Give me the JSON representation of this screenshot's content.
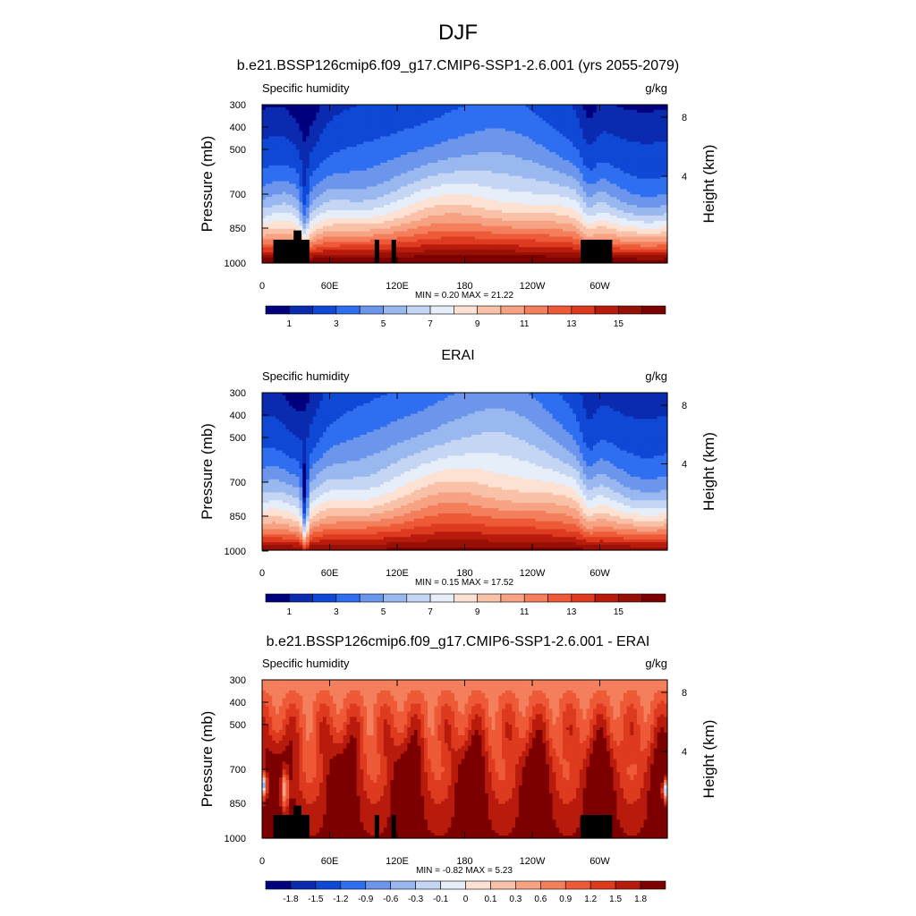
{
  "figure": {
    "main_title": "DJF",
    "panel_variable_label": "Specific humidity",
    "panel_units_label": "g/kg",
    "pressure_axis_label": "Pressure (mb)",
    "height_axis_label": "Height (km)"
  },
  "chart_data": [
    {
      "type": "heatmap",
      "title": "b.e21.BSSP126cmip6.f09_g17.CMIP6-SSP1-2.6.001 (yrs 2055-2079)",
      "variable": "Specific humidity",
      "units": "g/kg",
      "x_ticks": [
        "0",
        "60E",
        "120E",
        "180",
        "120W",
        "60W"
      ],
      "y_ticks": [
        "300",
        "400",
        "500",
        "700",
        "850",
        "1000"
      ],
      "right_ticks": [
        "8",
        "4"
      ],
      "xlabel": "",
      "ylabel": "Pressure (mb)",
      "right_label": "Height (km)",
      "x_range_deg_east": [
        0,
        360
      ],
      "pressure_range_mb": [
        1000,
        300
      ],
      "stats_text": "MIN =   0.20  MAX =  21.22",
      "min": 0.2,
      "max": 21.22,
      "colorbar_labels": [
        "1",
        "3",
        "5",
        "7",
        "9",
        "11",
        "13",
        "15"
      ],
      "colorbar_levels": [
        0.5,
        1,
        2,
        3,
        4,
        5,
        6,
        7,
        8,
        9,
        10,
        11,
        12,
        13,
        14,
        15
      ],
      "colorbar_colors": [
        "#00007f",
        "#0a2bb0",
        "#0f48d4",
        "#2f6ef0",
        "#6c96ec",
        "#9ab8f0",
        "#c5d6f4",
        "#e6eef9",
        "#fde2d4",
        "#f9c2a8",
        "#f6a283",
        "#f47f5c",
        "#ee5a37",
        "#de3a1f",
        "#b81b0c",
        "#961006",
        "#7c0000"
      ],
      "topography": true
    },
    {
      "type": "heatmap",
      "title": "ERAI",
      "variable": "Specific humidity",
      "units": "g/kg",
      "x_ticks": [
        "0",
        "60E",
        "120E",
        "180",
        "120W",
        "60W"
      ],
      "y_ticks": [
        "300",
        "400",
        "500",
        "700",
        "850",
        "1000"
      ],
      "right_ticks": [
        "8",
        "4"
      ],
      "xlabel": "",
      "ylabel": "Pressure (mb)",
      "right_label": "Height (km)",
      "x_range_deg_east": [
        0,
        360
      ],
      "pressure_range_mb": [
        1000,
        300
      ],
      "stats_text": "MIN =   0.15  MAX =  17.52",
      "min": 0.15,
      "max": 17.52,
      "colorbar_labels": [
        "1",
        "3",
        "5",
        "7",
        "9",
        "11",
        "13",
        "15"
      ],
      "colorbar_levels": [
        0.5,
        1,
        2,
        3,
        4,
        5,
        6,
        7,
        8,
        9,
        10,
        11,
        12,
        13,
        14,
        15
      ],
      "colorbar_colors": [
        "#00007f",
        "#0a2bb0",
        "#0f48d4",
        "#2f6ef0",
        "#6c96ec",
        "#9ab8f0",
        "#c5d6f4",
        "#e6eef9",
        "#fde2d4",
        "#f9c2a8",
        "#f6a283",
        "#f47f5c",
        "#ee5a37",
        "#de3a1f",
        "#b81b0c",
        "#961006",
        "#7c0000"
      ],
      "topography": false
    },
    {
      "type": "heatmap",
      "title": "b.e21.BSSP126cmip6.f09_g17.CMIP6-SSP1-2.6.001 - ERAI",
      "variable": "Specific humidity",
      "units": "g/kg",
      "x_ticks": [
        "0",
        "60E",
        "120E",
        "180",
        "120W",
        "60W"
      ],
      "y_ticks": [
        "300",
        "400",
        "500",
        "700",
        "850",
        "1000"
      ],
      "right_ticks": [
        "8",
        "4"
      ],
      "xlabel": "",
      "ylabel": "Pressure (mb)",
      "right_label": "Height (km)",
      "x_range_deg_east": [
        0,
        360
      ],
      "pressure_range_mb": [
        1000,
        300
      ],
      "stats_text": "MIN =  -0.82  MAX =   5.23",
      "min": -0.82,
      "max": 5.23,
      "colorbar_labels": [
        "-1.8",
        "-1.5",
        "-1.2",
        "-0.9",
        "-0.6",
        "-0.3",
        "-0.1",
        "0",
        "0.1",
        "0.3",
        "0.6",
        "0.9",
        "1.2",
        "1.5",
        "1.8"
      ],
      "colorbar_levels": [
        -1.8,
        -1.5,
        -1.2,
        -0.9,
        -0.6,
        -0.3,
        -0.1,
        0,
        0.1,
        0.3,
        0.6,
        0.9,
        1.2,
        1.5,
        1.8
      ],
      "colorbar_colors": [
        "#00007f",
        "#0a2bb0",
        "#0f48d4",
        "#2f6ef0",
        "#6c96ec",
        "#9ab8f0",
        "#c5d6f4",
        "#e6eef9",
        "#fde2d4",
        "#f9c2a8",
        "#f6a283",
        "#f47f5c",
        "#ee5a37",
        "#de3a1f",
        "#b81b0c",
        "#7c0000"
      ],
      "topography": true
    }
  ]
}
